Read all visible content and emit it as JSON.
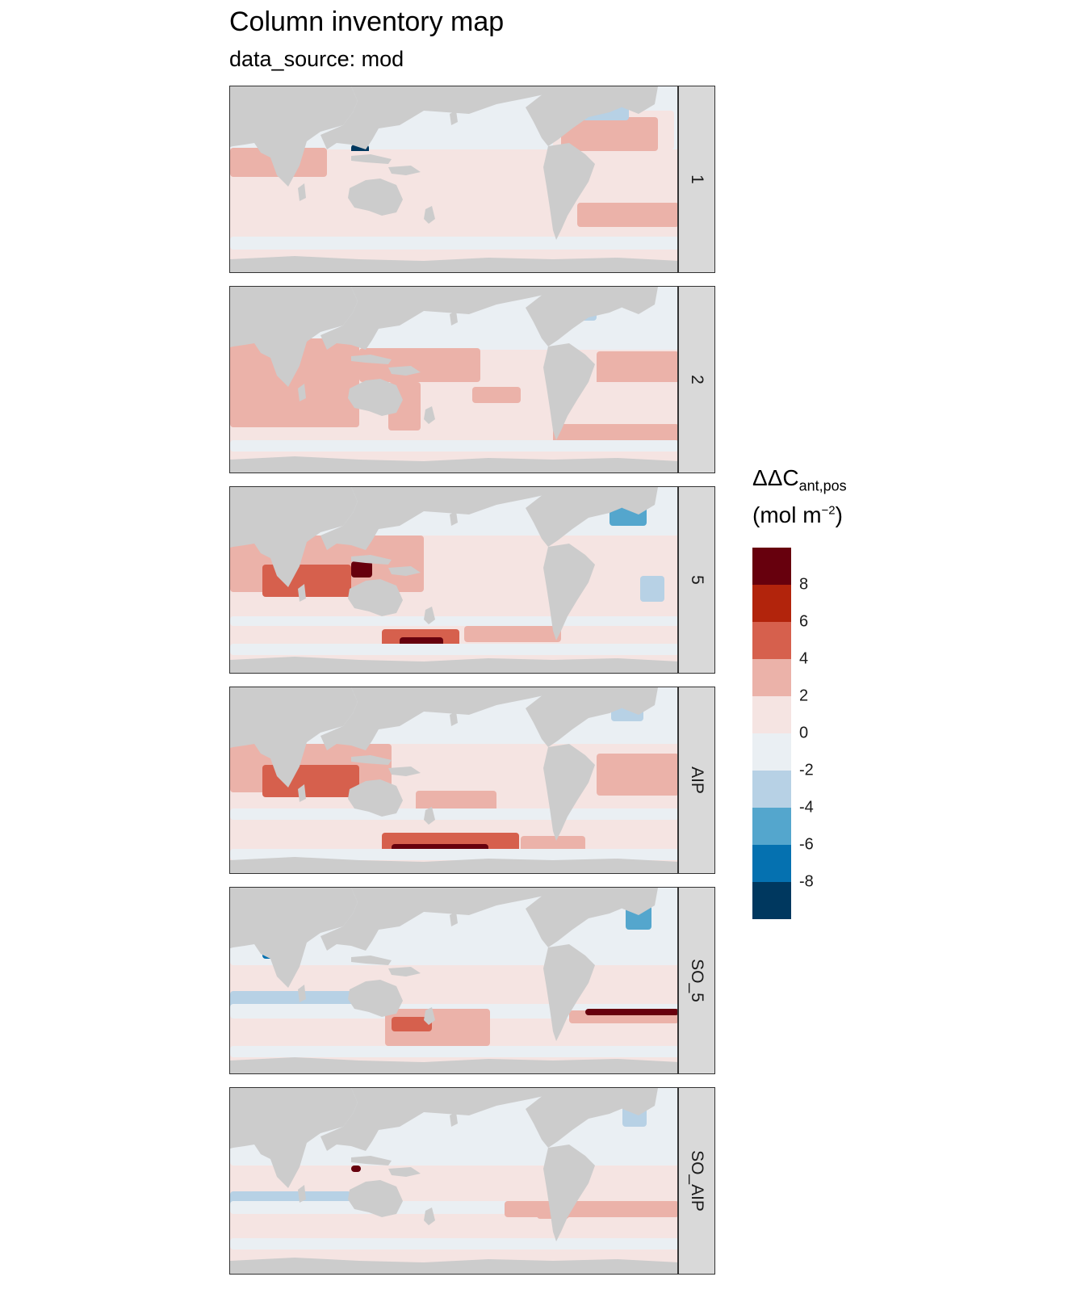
{
  "title": "Column inventory map",
  "subtitle": "data_source: mod",
  "map_data": {
    "type": "faceted-map",
    "variable": "ΔΔC",
    "variable_sub": "ant,pos",
    "unit_prefix": "(mol m",
    "unit_sup": "−2",
    "unit_suffix": ")",
    "colors": {
      "land": "#cccccc",
      "missing": "#ffffff"
    },
    "legend": {
      "bins": [
        {
          "min": 8,
          "max": 10,
          "color": "#67000d"
        },
        {
          "min": 6,
          "max": 8,
          "color": "#b2240c"
        },
        {
          "min": 4,
          "max": 6,
          "color": "#d6604d"
        },
        {
          "min": 2,
          "max": 4,
          "color": "#ebb2a9"
        },
        {
          "min": 0,
          "max": 2,
          "color": "#f5e4e2"
        },
        {
          "min": -2,
          "max": 0,
          "color": "#eaeff3"
        },
        {
          "min": -4,
          "max": -2,
          "color": "#b7d1e5"
        },
        {
          "min": -6,
          "max": -4,
          "color": "#54a6cd"
        },
        {
          "min": -8,
          "max": -6,
          "color": "#0571b0"
        },
        {
          "min": -10,
          "max": -8,
          "color": "#00385f"
        }
      ],
      "ticks": [
        "8",
        "6",
        "4",
        "2",
        "0",
        "-2",
        "-4",
        "-6",
        "-8"
      ]
    },
    "facets": [
      {
        "label": "1"
      },
      {
        "label": "2"
      },
      {
        "label": "5"
      },
      {
        "label": "AIP"
      },
      {
        "label": "SO_5"
      },
      {
        "label": "SO_AIP"
      }
    ]
  }
}
